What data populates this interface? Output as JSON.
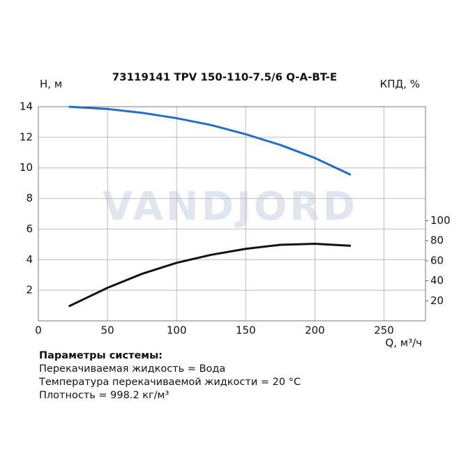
{
  "chart_data": {
    "type": "line",
    "title": "73119141 TPV 150-110-7.5/6 Q-A-BT-E",
    "watermark": "VANDJORD",
    "ylabel": "H, м",
    "y2label": "КПД, %",
    "xlabel": "Q, м³/ч",
    "x": [
      22,
      50,
      75,
      100,
      125,
      150,
      175,
      200,
      226
    ],
    "series": [
      {
        "name": "H",
        "color": "#1f6fc8",
        "values": [
          14.0,
          13.85,
          13.6,
          13.25,
          12.8,
          12.2,
          11.5,
          10.65,
          9.55
        ]
      },
      {
        "name": "КПД",
        "color": "#111111",
        "axis": "y2",
        "values": [
          14.5,
          33,
          47,
          58,
          66,
          72,
          76,
          77,
          75
        ]
      }
    ],
    "xlim": [
      0,
      280
    ],
    "xticks": [
      0,
      50,
      100,
      150,
      200,
      250
    ],
    "ylim": [
      0,
      14
    ],
    "yticks": [
      2,
      4,
      6,
      8,
      10,
      12,
      14
    ],
    "y2lim": [
      0,
      214
    ],
    "y2ticks": [
      20,
      40,
      60,
      80,
      100
    ],
    "grid": true
  },
  "params": {
    "title": "Параметры системы:",
    "lines": [
      "Перекачиваемая жидкость = Вода",
      "Температура перекачиваемой жидкости = 20 °C",
      "Плотность = 998.2 кг/м³"
    ]
  }
}
